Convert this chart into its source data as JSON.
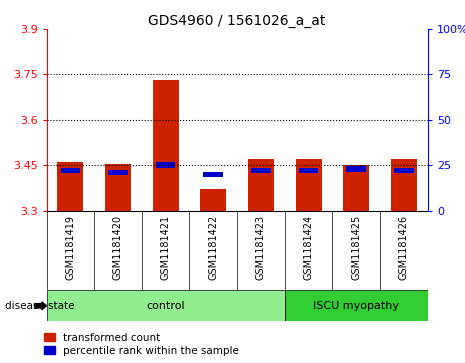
{
  "title": "GDS4960 / 1561026_a_at",
  "samples": [
    "GSM1181419",
    "GSM1181420",
    "GSM1181421",
    "GSM1181422",
    "GSM1181423",
    "GSM1181424",
    "GSM1181425",
    "GSM1181426"
  ],
  "transformed_count": [
    3.46,
    3.455,
    3.73,
    3.37,
    3.47,
    3.47,
    3.45,
    3.47
  ],
  "percentile_rank": [
    22,
    21,
    25,
    20,
    22,
    22,
    23,
    22
  ],
  "ylim_left": [
    3.3,
    3.9
  ],
  "ylim_right": [
    0,
    100
  ],
  "yticks_left": [
    3.3,
    3.45,
    3.6,
    3.75,
    3.9
  ],
  "yticks_right": [
    0,
    25,
    50,
    75,
    100
  ],
  "ytick_labels_right": [
    "0",
    "25",
    "50",
    "75",
    "100%"
  ],
  "groups": {
    "control": [
      0,
      1,
      2,
      3,
      4
    ],
    "ISCU myopathy": [
      5,
      6,
      7
    ]
  },
  "control_color": "#90EE90",
  "myopathy_color": "#32CD32",
  "bar_color": "#CC2200",
  "percentile_color": "#0000CC",
  "bg_color": "#C8C8C8",
  "plot_bg": "#FFFFFF",
  "title_fontsize": 10,
  "tick_fontsize": 8,
  "bar_width": 0.55,
  "legend_entries": [
    "transformed count",
    "percentile rank within the sample"
  ],
  "gridline_ticks": [
    3.45,
    3.6,
    3.75
  ]
}
